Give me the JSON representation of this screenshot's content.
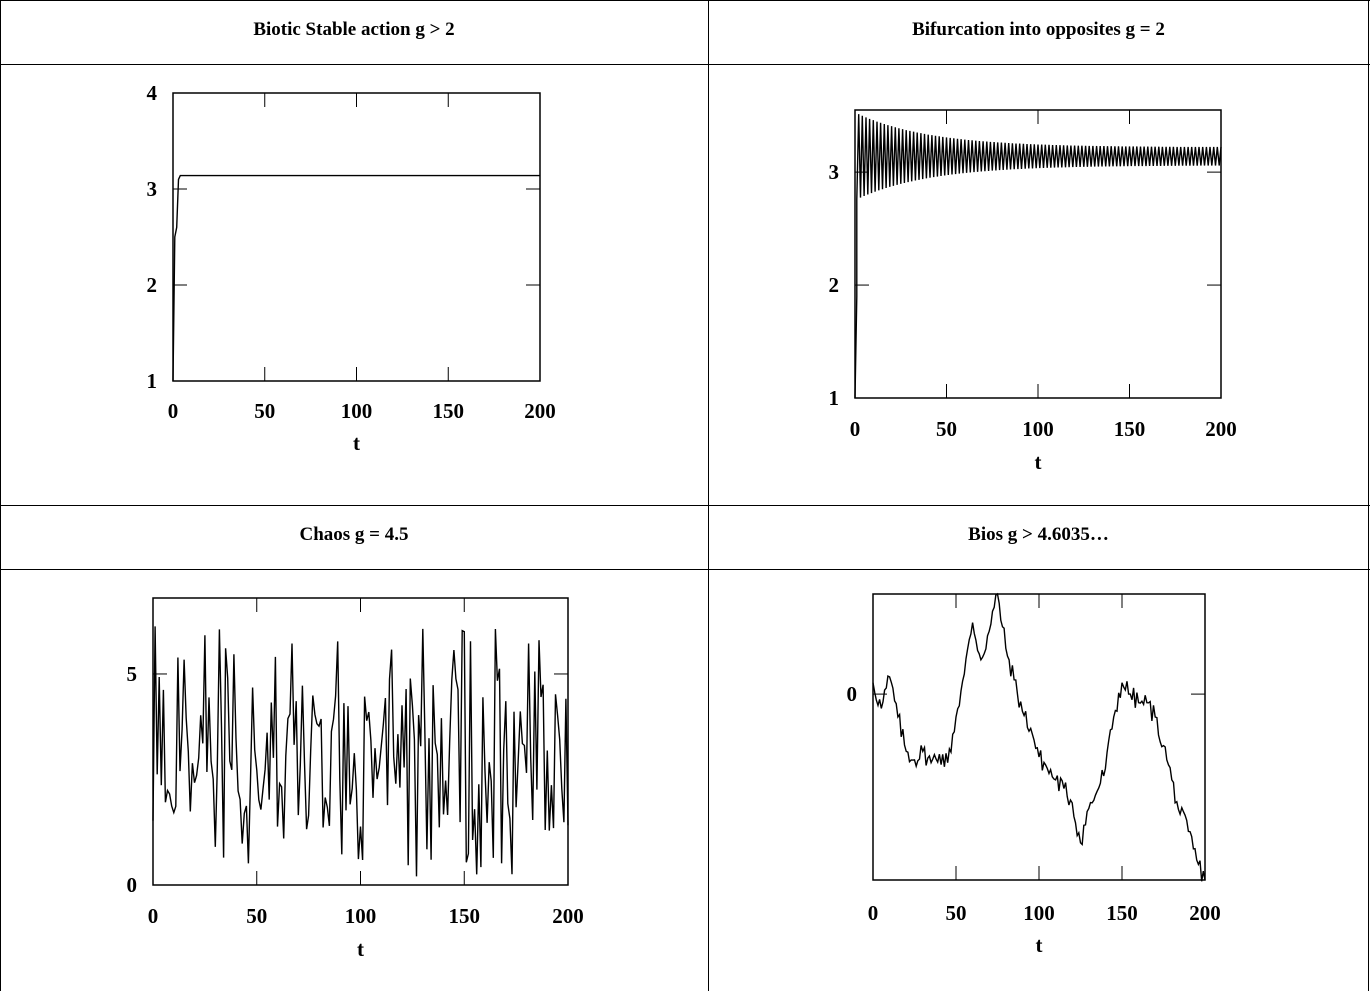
{
  "panels": [
    {
      "title": "Biotic Stable action g > 2"
    },
    {
      "title": "Bifurcation into opposites g = 2"
    },
    {
      "title": "Chaos g = 4.5"
    },
    {
      "title": "Bios g > 4.6035…"
    }
  ],
  "chart_data": [
    {
      "type": "line",
      "title": "Biotic Stable action g > 2",
      "xlabel": "t",
      "ylabel": "",
      "xlim": [
        0,
        200
      ],
      "ylim": [
        1,
        4
      ],
      "xticks": [
        0,
        50,
        100,
        150,
        200
      ],
      "yticks": [
        1,
        2,
        3,
        4
      ],
      "series": [
        {
          "x": [
            0,
            1,
            2,
            3,
            4,
            200
          ],
          "y": [
            1.0,
            2.5,
            2.6,
            3.1,
            3.14,
            3.14
          ]
        }
      ]
    },
    {
      "type": "line",
      "title": "Bifurcation into opposites g = 2",
      "xlabel": "t",
      "ylabel": "",
      "xlim": [
        0,
        200
      ],
      "ylim": [
        1,
        3.55
      ],
      "xticks": [
        0,
        50,
        100,
        150,
        200
      ],
      "yticks": [
        1,
        2,
        3
      ],
      "oscillation": {
        "center": 3.14,
        "start_amplitude": 0.38,
        "end_amplitude": 0.08,
        "x_range": [
          1,
          200
        ],
        "initial_rise": [
          [
            0,
            1.0
          ],
          [
            1,
            1.9
          ]
        ]
      }
    },
    {
      "type": "line",
      "title": "Chaos g = 4.5",
      "xlabel": "t",
      "ylabel": "",
      "xlim": [
        0,
        200
      ],
      "ylim": [
        0,
        6.8
      ],
      "xticks": [
        0,
        50,
        100,
        150,
        200
      ],
      "yticks": [
        0,
        5
      ],
      "series": [
        {
          "x_start": 0,
          "x_end": 200,
          "value_range": [
            0,
            6.2
          ],
          "mean": 3.1,
          "note_values": "chaotic, approx uniform 0.1–6.2"
        }
      ]
    },
    {
      "type": "line",
      "title": "Bios g > 4.6035…",
      "xlabel": "t",
      "ylabel": "",
      "xlim": [
        0,
        200
      ],
      "ylim": [
        -6.5,
        3.5
      ],
      "xticks": [
        0,
        50,
        100,
        150,
        200
      ],
      "yticks": [
        0
      ],
      "series": [
        {
          "x": [
            0,
            5,
            10,
            15,
            20,
            25,
            30,
            35,
            40,
            45,
            50,
            55,
            60,
            65,
            70,
            75,
            80,
            85,
            90,
            95,
            100,
            105,
            110,
            115,
            120,
            125,
            130,
            135,
            140,
            145,
            150,
            155,
            160,
            165,
            170,
            175,
            180,
            185,
            190,
            195,
            200
          ],
          "y": [
            0.4,
            -0.5,
            0.6,
            -0.8,
            -2.0,
            -2.3,
            -2.0,
            -2.4,
            -2.1,
            -2.4,
            -0.8,
            0.7,
            2.5,
            1.2,
            2.2,
            3.5,
            1.6,
            0.5,
            -0.6,
            -1.2,
            -2.2,
            -2.6,
            -3.0,
            -3.3,
            -3.8,
            -5.2,
            -4.0,
            -3.4,
            -2.6,
            -0.8,
            0.4,
            0.0,
            -0.3,
            -0.3,
            -0.8,
            -1.8,
            -3.0,
            -4.2,
            -4.8,
            -5.8,
            -6.5
          ]
        }
      ]
    }
  ]
}
